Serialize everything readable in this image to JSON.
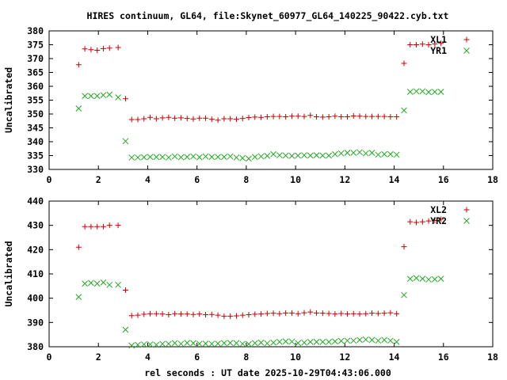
{
  "title": "HIRES continuum, GL64, file:Skynet_60977_GL64_140225_90422.cyb.txt",
  "xlabel": "rel seconds : UT date 2025-10-29T04:43:06.000",
  "colors": {
    "xl": "#cc0000",
    "yr": "#22aa22",
    "axis": "#000000"
  },
  "chart_data": [
    {
      "type": "scatter",
      "ylabel": "Uncalibrated",
      "xlim": [
        0,
        18
      ],
      "ylim": [
        330,
        380
      ],
      "xticks": [
        0,
        2,
        4,
        6,
        8,
        10,
        12,
        14,
        16,
        18
      ],
      "yticks": [
        330,
        335,
        340,
        345,
        350,
        355,
        360,
        365,
        370,
        375,
        380
      ],
      "legend_position": "top-right",
      "series": [
        {
          "name": "XL1",
          "marker": "plus",
          "x": [
            1.2,
            1.45,
            1.7,
            1.95,
            2.2,
            2.45,
            2.8,
            3.1,
            3.35,
            3.6,
            3.85,
            4.1,
            4.35,
            4.6,
            4.85,
            5.1,
            5.35,
            5.6,
            5.85,
            6.1,
            6.35,
            6.6,
            6.85,
            7.1,
            7.35,
            7.6,
            7.85,
            8.1,
            8.35,
            8.6,
            8.85,
            9.1,
            9.35,
            9.6,
            9.85,
            10.1,
            10.35,
            10.6,
            10.85,
            11.1,
            11.35,
            11.6,
            11.85,
            12.1,
            12.35,
            12.6,
            12.85,
            13.1,
            13.35,
            13.6,
            13.85,
            14.1,
            14.4,
            14.65,
            14.9,
            15.15,
            15.4,
            15.65,
            15.9
          ],
          "y": [
            367.8,
            373.5,
            373.2,
            373,
            373.6,
            373.8,
            374,
            355.5,
            348,
            348,
            348.3,
            348.8,
            348.3,
            348.6,
            348.8,
            348.5,
            348.6,
            348.4,
            348.2,
            348.5,
            348.5,
            348.1,
            347.8,
            348.3,
            348.3,
            348.1,
            348.4,
            348.7,
            348.9,
            348.8,
            349,
            349.1,
            349.1,
            349,
            349.2,
            349.2,
            349.1,
            349.5,
            349,
            348.9,
            349,
            349.2,
            349,
            349,
            349.3,
            349.2,
            349.1,
            349.1,
            349.1,
            349.1,
            349,
            349,
            368.3,
            375,
            375,
            375.2,
            375,
            375.3,
            375.5
          ]
        },
        {
          "name": "YR1",
          "marker": "cross",
          "x": [
            1.2,
            1.45,
            1.7,
            1.95,
            2.2,
            2.45,
            2.8,
            3.1,
            3.35,
            3.6,
            3.85,
            4.1,
            4.35,
            4.6,
            4.85,
            5.1,
            5.35,
            5.6,
            5.85,
            6.1,
            6.35,
            6.6,
            6.85,
            7.1,
            7.35,
            7.6,
            7.85,
            8.1,
            8.35,
            8.6,
            8.85,
            9.1,
            9.35,
            9.6,
            9.85,
            10.1,
            10.35,
            10.6,
            10.85,
            11.1,
            11.35,
            11.6,
            11.85,
            12.1,
            12.35,
            12.6,
            12.85,
            13.1,
            13.35,
            13.6,
            13.85,
            14.1,
            14.4,
            14.65,
            14.9,
            15.15,
            15.4,
            15.65,
            15.9
          ],
          "y": [
            352,
            356.5,
            356.5,
            356.5,
            356.8,
            357,
            356,
            340.2,
            334.3,
            334.3,
            334.4,
            334.5,
            334.5,
            334.5,
            334.3,
            334.7,
            334.4,
            334.5,
            334.7,
            334.4,
            334.7,
            334.5,
            334.5,
            334.5,
            334.7,
            334.3,
            334.1,
            333.9,
            334.5,
            334.7,
            334.9,
            335.5,
            335.1,
            335,
            334.9,
            335,
            335.1,
            335,
            335.1,
            335,
            335,
            335.5,
            335.8,
            336,
            336,
            336.2,
            335.8,
            336,
            335.3,
            335.5,
            335.5,
            335.3,
            351.3,
            358,
            358.2,
            358.2,
            357.9,
            358,
            358
          ]
        }
      ]
    },
    {
      "type": "scatter",
      "ylabel": "Uncalibrated",
      "xlim": [
        0,
        18
      ],
      "ylim": [
        380,
        440
      ],
      "xticks": [
        0,
        2,
        4,
        6,
        8,
        10,
        12,
        14,
        16,
        18
      ],
      "yticks": [
        380,
        390,
        400,
        410,
        420,
        430,
        440
      ],
      "legend_position": "top-right",
      "series": [
        {
          "name": "XL2",
          "marker": "plus",
          "x": [
            1.2,
            1.45,
            1.7,
            1.95,
            2.2,
            2.45,
            2.8,
            3.1,
            3.35,
            3.6,
            3.85,
            4.1,
            4.35,
            4.6,
            4.85,
            5.1,
            5.35,
            5.6,
            5.85,
            6.1,
            6.35,
            6.6,
            6.85,
            7.1,
            7.35,
            7.6,
            7.85,
            8.1,
            8.35,
            8.6,
            8.85,
            9.1,
            9.35,
            9.6,
            9.85,
            10.1,
            10.35,
            10.6,
            10.85,
            11.1,
            11.35,
            11.6,
            11.85,
            12.1,
            12.35,
            12.6,
            12.85,
            13.1,
            13.35,
            13.6,
            13.85,
            14.1,
            14.4,
            14.65,
            14.9,
            15.15,
            15.4,
            15.65,
            15.9
          ],
          "y": [
            421,
            429.5,
            429.5,
            429.5,
            429.5,
            430,
            430,
            403.3,
            392.8,
            393,
            393.4,
            393.6,
            393.6,
            393.5,
            393.2,
            393.6,
            393.5,
            393.5,
            393.3,
            393.5,
            393.2,
            393.3,
            393,
            392.6,
            392.6,
            392.7,
            393,
            393.2,
            393.4,
            393.5,
            393.7,
            393.8,
            393.6,
            393.9,
            393.9,
            393.6,
            394,
            394.3,
            393.9,
            393.8,
            393.7,
            393.5,
            393.7,
            393.5,
            393.6,
            393.5,
            393.6,
            393.8,
            393.7,
            393.8,
            394,
            393.6,
            421.2,
            431.5,
            431.2,
            431.5,
            431.8,
            432,
            432.5
          ]
        },
        {
          "name": "YR2",
          "marker": "cross",
          "x": [
            1.2,
            1.45,
            1.7,
            1.95,
            2.2,
            2.45,
            2.8,
            3.1,
            3.35,
            3.6,
            3.85,
            4.1,
            4.35,
            4.6,
            4.85,
            5.1,
            5.35,
            5.6,
            5.85,
            6.1,
            6.35,
            6.6,
            6.85,
            7.1,
            7.35,
            7.6,
            7.85,
            8.1,
            8.35,
            8.6,
            8.85,
            9.1,
            9.35,
            9.6,
            9.85,
            10.1,
            10.35,
            10.6,
            10.85,
            11.1,
            11.35,
            11.6,
            11.85,
            12.1,
            12.35,
            12.6,
            12.85,
            13.1,
            13.35,
            13.6,
            13.85,
            14.1,
            14.4,
            14.65,
            14.9,
            15.15,
            15.4,
            15.65,
            15.9
          ],
          "y": [
            400.5,
            406,
            406.3,
            406,
            406.5,
            405.5,
            405.5,
            387,
            380.5,
            380.8,
            381,
            381,
            380.8,
            381.2,
            381.2,
            381.5,
            381.2,
            381.6,
            381.5,
            381.2,
            381.3,
            381.2,
            381.3,
            381.5,
            381.6,
            381.5,
            381.2,
            381.1,
            381.5,
            381.7,
            381.4,
            381.7,
            382,
            382.2,
            382.1,
            381.5,
            381.7,
            382,
            382,
            382,
            382,
            382.2,
            382.4,
            382.5,
            382.5,
            382.8,
            383,
            382.8,
            382.5,
            382.8,
            382.5,
            382,
            401.3,
            408,
            408.3,
            408,
            407.7,
            407.8,
            408
          ]
        }
      ]
    }
  ]
}
